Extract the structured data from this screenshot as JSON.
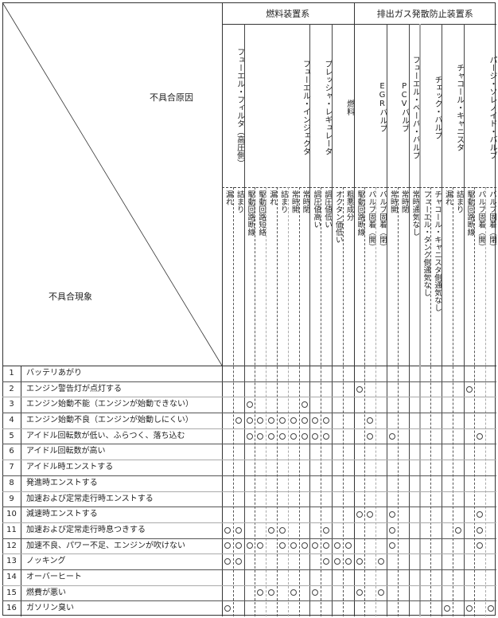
{
  "corner": {
    "cause_label": "不具合原因",
    "symptom_label": "不具合現象"
  },
  "groups": [
    {
      "label": "燃料装置系",
      "start_col": 0,
      "end_col": 11
    },
    {
      "label": "排出ガス発散防止装置系",
      "start_col": 12,
      "end_col": 24
    }
  ],
  "components": [
    {
      "label": "フューエル・フィルタ（高圧側）",
      "causes": [
        "漏れ",
        "詰まり"
      ]
    },
    {
      "label": "フューエル・インジェクタ",
      "causes": [
        "駆動回路断線",
        "駆動回路短絡",
        "漏れ",
        "詰まり",
        "常時開",
        "常時閉"
      ]
    },
    {
      "label": "プレッシャ・レギュレータ",
      "causes": [
        "調圧値高い",
        "調圧値低い"
      ]
    },
    {
      "label": "燃料",
      "causes": [
        "オクタン価低い",
        "粗悪成分"
      ]
    },
    {
      "label": "EGRバルブ",
      "causes": [
        "駆動回路断線",
        "バルブ固着（開）",
        "バルブ固着（閉）"
      ]
    },
    {
      "label": "PCVバルブ",
      "causes": [
        "常時開",
        "常時閉"
      ]
    },
    {
      "label": "フューエル・ベーパ・バルブ",
      "causes": [
        "常時通気なし"
      ]
    },
    {
      "label": "チェック・バルブ",
      "causes": [
        "フューエル・タンク側通気なし",
        "チャコール・キャニスタ側通気なし"
      ]
    },
    {
      "label": "チャコール・キャニスタ",
      "causes": [
        "漏れ",
        "詰まり"
      ]
    },
    {
      "label": "パージ・ソレノイド・バルブ",
      "causes": [
        "駆動回路断線",
        "バルブ固着（開）",
        "バルブ固着（閉）"
      ]
    }
  ],
  "mark_symbol": "○",
  "symptoms": [
    {
      "no": "1",
      "label": "バッテリあがり",
      "marks": []
    },
    {
      "no": "2",
      "label": "エンジン警告灯が点灯する",
      "marks": [
        12,
        22
      ]
    },
    {
      "no": "3",
      "label": "エンジン始動不能（エンジンが始動できない）",
      "marks": [
        2,
        7
      ]
    },
    {
      "no": "4",
      "label": "エンジン始動不良（エンジンが始動しにくい）",
      "marks": [
        1,
        2,
        3,
        4,
        5,
        6,
        7,
        8,
        9,
        13
      ]
    },
    {
      "no": "5",
      "label": "アイドル回転数が低い、ふらつく、落ち込む",
      "marks": [
        2,
        3,
        4,
        5,
        6,
        7,
        8,
        9,
        13,
        15,
        23
      ]
    },
    {
      "no": "6",
      "label": "アイドル回転数が高い",
      "marks": []
    },
    {
      "no": "7",
      "label": "アイドル時エンストする",
      "marks": []
    },
    {
      "no": "8",
      "label": "発進時エンストする",
      "marks": []
    },
    {
      "no": "9",
      "label": "加速および定常走行時エンストする",
      "marks": []
    },
    {
      "no": "10",
      "label": "減速時エンストする",
      "marks": [
        12,
        13,
        15,
        23
      ]
    },
    {
      "no": "11",
      "label": "加速および定常走行時息つきする",
      "marks": [
        0,
        1,
        4,
        5,
        9,
        15,
        21,
        23
      ]
    },
    {
      "no": "12",
      "label": "加速不良、パワー不足、エンジンが吹けない",
      "marks": [
        0,
        1,
        2,
        3,
        5,
        6,
        7,
        8,
        9,
        10,
        11,
        15,
        23
      ]
    },
    {
      "no": "13",
      "label": "ノッキング",
      "marks": [
        0,
        1,
        9,
        10,
        11,
        12,
        14
      ]
    },
    {
      "no": "14",
      "label": "オーバーヒート",
      "marks": []
    },
    {
      "no": "15",
      "label": "燃費が悪い",
      "marks": [
        3,
        4,
        6,
        8,
        12,
        14
      ]
    },
    {
      "no": "16",
      "label": "ガソリン臭い",
      "marks": [
        0,
        20,
        22,
        24
      ]
    }
  ]
}
